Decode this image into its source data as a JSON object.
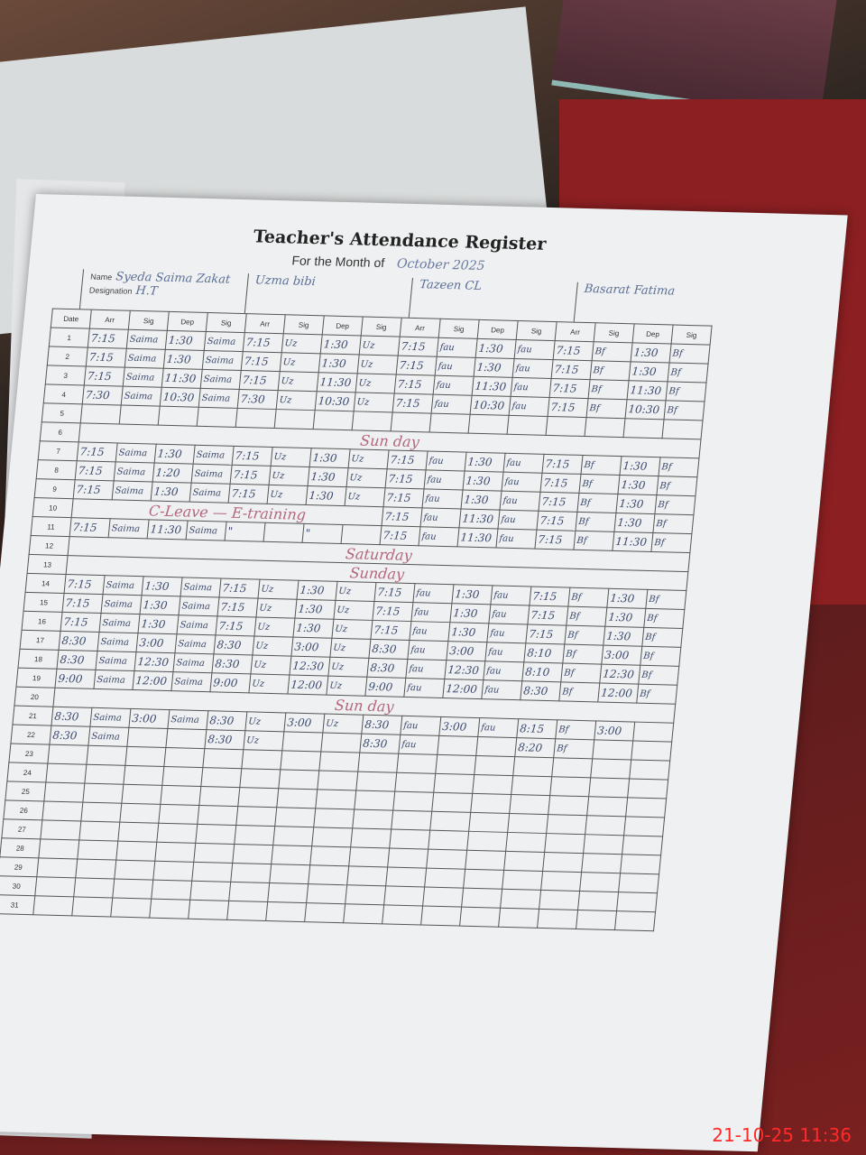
{
  "register": {
    "title": "Teacher's Attendance Register",
    "month_label": "For the Month of",
    "month_value": "October 2025",
    "name_label": "Name",
    "designation_label": "Designation",
    "teachers": [
      {
        "name": "Syeda Saima Zakat",
        "designation": "H.T"
      },
      {
        "name": "Uzma bibi",
        "designation": ""
      },
      {
        "name": "Tazeen CL",
        "designation": ""
      },
      {
        "name": "Basarat Fatima",
        "designation": ""
      }
    ],
    "col_headers": {
      "date": "Date",
      "arr": "Arr",
      "sig": "Sig",
      "dep": "Dep"
    },
    "rows": [
      {
        "d": "1",
        "v": [
          "7:15",
          "Saima",
          "1:30",
          "Saima",
          "7:15",
          "Uz",
          "1:30",
          "Uz",
          "7:15",
          "fau",
          "1:30",
          "fau",
          "7:15",
          "Bf",
          "1:30",
          "Bf"
        ]
      },
      {
        "d": "2",
        "v": [
          "7:15",
          "Saima",
          "1:30",
          "Saima",
          "7:15",
          "Uz",
          "1:30",
          "Uz",
          "7:15",
          "fau",
          "1:30",
          "fau",
          "7:15",
          "Bf",
          "1:30",
          "Bf"
        ]
      },
      {
        "d": "3",
        "v": [
          "7:15",
          "Saima",
          "11:30",
          "Saima",
          "7:15",
          "Uz",
          "11:30",
          "Uz",
          "7:15",
          "fau",
          "11:30",
          "fau",
          "7:15",
          "Bf",
          "11:30",
          "Bf"
        ]
      },
      {
        "d": "4",
        "v": [
          "7:30",
          "Saima",
          "10:30",
          "Saima",
          "7:30",
          "Uz",
          "10:30",
          "Uz",
          "7:15",
          "fau",
          "10:30",
          "fau",
          "7:15",
          "Bf",
          "10:30",
          "Bf"
        ]
      },
      {
        "d": "5",
        "v": []
      },
      {
        "d": "6",
        "note": "Sun day"
      },
      {
        "d": "7",
        "v": [
          "7:15",
          "Saima",
          "1:30",
          "Saima",
          "7:15",
          "Uz",
          "1:30",
          "Uz",
          "7:15",
          "fau",
          "1:30",
          "fau",
          "7:15",
          "Bf",
          "1:30",
          "Bf"
        ]
      },
      {
        "d": "8",
        "v": [
          "7:15",
          "Saima",
          "1:20",
          "Saima",
          "7:15",
          "Uz",
          "1:30",
          "Uz",
          "7:15",
          "fau",
          "1:30",
          "fau",
          "7:15",
          "Bf",
          "1:30",
          "Bf"
        ]
      },
      {
        "d": "9",
        "v": [
          "7:15",
          "Saima",
          "1:30",
          "Saima",
          "7:15",
          "Uz",
          "1:30",
          "Uz",
          "7:15",
          "fau",
          "1:30",
          "fau",
          "7:15",
          "Bf",
          "1:30",
          "Bf"
        ]
      },
      {
        "d": "10",
        "note": "C-Leave — E-training",
        "v": [
          "",
          "",
          "",
          "",
          "",
          "",
          "",
          "",
          "7:15",
          "fau",
          "11:30",
          "fau",
          "7:15",
          "Bf",
          "1:30",
          "Bf"
        ]
      },
      {
        "d": "11",
        "v": [
          "7:15",
          "Saima",
          "11:30",
          "Saima",
          "\"",
          "",
          "\"",
          "",
          "7:15",
          "fau",
          "11:30",
          "fau",
          "7:15",
          "Bf",
          "11:30",
          "Bf"
        ]
      },
      {
        "d": "12",
        "note": "Saturday"
      },
      {
        "d": "13",
        "note": "Sunday"
      },
      {
        "d": "14",
        "v": [
          "7:15",
          "Saima",
          "1:30",
          "Saima",
          "7:15",
          "Uz",
          "1:30",
          "Uz",
          "7:15",
          "fau",
          "1:30",
          "fau",
          "7:15",
          "Bf",
          "1:30",
          "Bf"
        ]
      },
      {
        "d": "15",
        "v": [
          "7:15",
          "Saima",
          "1:30",
          "Saima",
          "7:15",
          "Uz",
          "1:30",
          "Uz",
          "7:15",
          "fau",
          "1:30",
          "fau",
          "7:15",
          "Bf",
          "1:30",
          "Bf"
        ]
      },
      {
        "d": "16",
        "v": [
          "7:15",
          "Saima",
          "1:30",
          "Saima",
          "7:15",
          "Uz",
          "1:30",
          "Uz",
          "7:15",
          "fau",
          "1:30",
          "fau",
          "7:15",
          "Bf",
          "1:30",
          "Bf"
        ]
      },
      {
        "d": "17",
        "v": [
          "8:30",
          "Saima",
          "3:00",
          "Saima",
          "8:30",
          "Uz",
          "3:00",
          "Uz",
          "8:30",
          "fau",
          "3:00",
          "fau",
          "8:10",
          "Bf",
          "3:00",
          "Bf"
        ]
      },
      {
        "d": "18",
        "v": [
          "8:30",
          "Saima",
          "12:30",
          "Saima",
          "8:30",
          "Uz",
          "12:30",
          "Uz",
          "8:30",
          "fau",
          "12:30",
          "fau",
          "8:10",
          "Bf",
          "12:30",
          "Bf"
        ]
      },
      {
        "d": "19",
        "v": [
          "9:00",
          "Saima",
          "12:00",
          "Saima",
          "9:00",
          "Uz",
          "12:00",
          "Uz",
          "9:00",
          "fau",
          "12:00",
          "fau",
          "8:30",
          "Bf",
          "12:00",
          "Bf"
        ]
      },
      {
        "d": "20",
        "note": "Sun day"
      },
      {
        "d": "21",
        "v": [
          "8:30",
          "Saima",
          "3:00",
          "Saima",
          "8:30",
          "Uz",
          "3:00",
          "Uz",
          "8:30",
          "fau",
          "3:00",
          "fau",
          "8:15",
          "Bf",
          "3:00",
          ""
        ]
      },
      {
        "d": "22",
        "v": [
          "8:30",
          "Saima",
          "",
          "",
          "8:30",
          "Uz",
          "",
          "",
          "8:30",
          "fau",
          "",
          "",
          "8:20",
          "Bf",
          "",
          ""
        ]
      },
      {
        "d": "23",
        "v": []
      },
      {
        "d": "24",
        "v": []
      },
      {
        "d": "25",
        "v": []
      },
      {
        "d": "26",
        "v": []
      },
      {
        "d": "27",
        "v": []
      },
      {
        "d": "28",
        "v": []
      },
      {
        "d": "29",
        "v": []
      },
      {
        "d": "30",
        "v": []
      },
      {
        "d": "31",
        "v": []
      }
    ]
  },
  "camera_timestamp": "21-10-25  11:36",
  "colors": {
    "ink": "#3d4a70",
    "red_ink": "#b4667c",
    "timestamp": "#ff2a2a"
  }
}
